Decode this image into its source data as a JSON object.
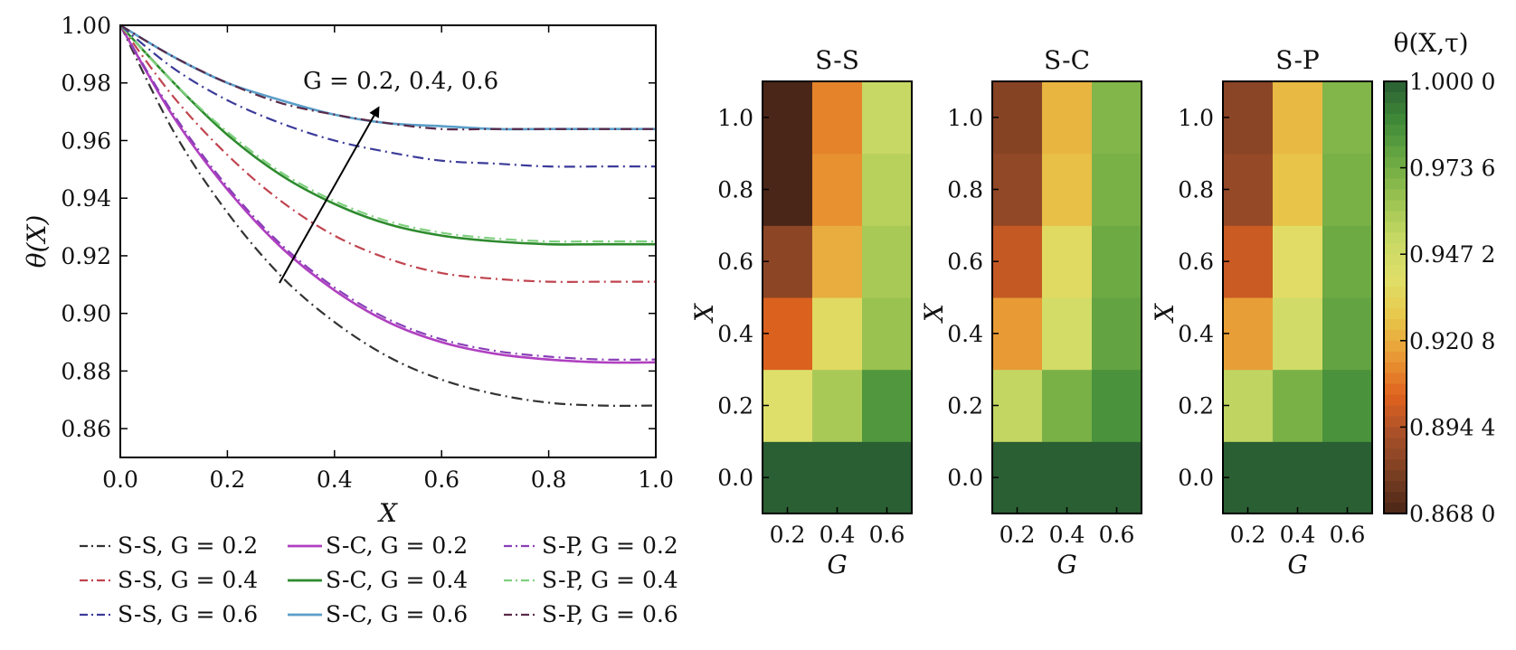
{
  "chart_data": [
    {
      "type": "line",
      "xlabel": "X",
      "ylabel": "θ(X)",
      "xlim": [
        0.0,
        1.0
      ],
      "ylim": [
        0.85,
        1.0
      ],
      "xticks": [
        "0.0",
        "0.2",
        "0.4",
        "0.6",
        "0.8",
        "1.0"
      ],
      "yticks": [
        "0.86",
        "0.88",
        "0.90",
        "0.92",
        "0.94",
        "0.96",
        "0.98",
        "1.00"
      ],
      "annotation": "G = 0.2, 0.4, 0.6",
      "legend_position": "below",
      "x": [
        0.0,
        0.1,
        0.2,
        0.3,
        0.4,
        0.5,
        0.6,
        0.7,
        0.8,
        0.9,
        1.0
      ],
      "series": [
        {
          "name": "S-S, G = 0.2",
          "color": "#333333",
          "dash": "dashdot",
          "values": [
            1.0,
            0.963,
            0.935,
            0.913,
            0.897,
            0.885,
            0.877,
            0.872,
            0.869,
            0.868,
            0.868
          ]
        },
        {
          "name": "S-C, G = 0.2",
          "color": "#b040c0",
          "dash": "solid",
          "values": [
            1.0,
            0.968,
            0.943,
            0.923,
            0.908,
            0.897,
            0.89,
            0.886,
            0.884,
            0.883,
            0.883
          ]
        },
        {
          "name": "S-P, G = 0.2",
          "color": "#8a3fb8",
          "dash": "dashdot",
          "values": [
            1.0,
            0.969,
            0.944,
            0.924,
            0.909,
            0.898,
            0.891,
            0.887,
            0.885,
            0.884,
            0.884
          ]
        },
        {
          "name": "S-S, G = 0.4",
          "color": "#c0444f",
          "dash": "dashdot",
          "values": [
            1.0,
            0.975,
            0.955,
            0.939,
            0.927,
            0.919,
            0.914,
            0.912,
            0.911,
            0.911,
            0.911
          ]
        },
        {
          "name": "S-C, G = 0.4",
          "color": "#2e8b2e",
          "dash": "solid",
          "values": [
            1.0,
            0.98,
            0.962,
            0.948,
            0.938,
            0.931,
            0.927,
            0.925,
            0.924,
            0.924,
            0.924
          ]
        },
        {
          "name": "S-P, G = 0.4",
          "color": "#7fd07f",
          "dash": "dashdot",
          "values": [
            1.0,
            0.98,
            0.963,
            0.949,
            0.939,
            0.932,
            0.928,
            0.926,
            0.925,
            0.925,
            0.925
          ]
        },
        {
          "name": "S-S, G = 0.6",
          "color": "#3b3b9a",
          "dash": "dashdot",
          "values": [
            1.0,
            0.985,
            0.974,
            0.966,
            0.96,
            0.956,
            0.953,
            0.952,
            0.951,
            0.951,
            0.951
          ]
        },
        {
          "name": "S-C, G = 0.6",
          "color": "#5b9ec9",
          "dash": "solid",
          "values": [
            1.0,
            0.989,
            0.98,
            0.974,
            0.969,
            0.966,
            0.965,
            0.964,
            0.964,
            0.964,
            0.964
          ]
        },
        {
          "name": "S-P, G = 0.6",
          "color": "#5a2a4a",
          "dash": "dashdot",
          "values": [
            1.0,
            0.989,
            0.98,
            0.973,
            0.969,
            0.966,
            0.964,
            0.964,
            0.964,
            0.964,
            0.964
          ]
        }
      ]
    },
    {
      "type": "heatmap",
      "title": "S-S",
      "xlabel": "G",
      "ylabel": "X",
      "x": [
        "0.2",
        "0.4",
        "0.6"
      ],
      "y": [
        "0.0",
        "0.2",
        "0.4",
        "0.6",
        "0.8",
        "1.0"
      ],
      "xticks": [
        "0.2",
        "0.4",
        "0.6"
      ],
      "yticks": [
        "0.0",
        "0.2",
        "0.4",
        "0.6",
        "0.8",
        "1.0"
      ],
      "z": [
        [
          1.0,
          1.0,
          1.0
        ],
        [
          0.941,
          0.96,
          0.983
        ],
        [
          0.903,
          0.937,
          0.964
        ],
        [
          0.885,
          0.921,
          0.96
        ],
        [
          0.868,
          0.914,
          0.956
        ],
        [
          0.868,
          0.911,
          0.952
        ]
      ]
    },
    {
      "type": "heatmap",
      "title": "S-C",
      "xlabel": "G",
      "ylabel": "X",
      "x": [
        "0.2",
        "0.4",
        "0.6"
      ],
      "y": [
        "0.0",
        "0.2",
        "0.4",
        "0.6",
        "0.8",
        "1.0"
      ],
      "xticks": [
        "0.2",
        "0.4",
        "0.6"
      ],
      "yticks": [
        "0.0",
        "0.2",
        "0.4",
        "0.6",
        "0.8",
        "1.0"
      ],
      "z": [
        [
          1.0,
          1.0,
          1.0
        ],
        [
          0.953,
          0.972,
          0.985
        ],
        [
          0.916,
          0.946,
          0.978
        ],
        [
          0.898,
          0.937,
          0.975
        ],
        [
          0.886,
          0.926,
          0.972
        ],
        [
          0.883,
          0.923,
          0.97
        ]
      ]
    },
    {
      "type": "heatmap",
      "title": "S-P",
      "xlabel": "G",
      "ylabel": "X",
      "x": [
        "0.2",
        "0.4",
        "0.6"
      ],
      "y": [
        "0.0",
        "0.2",
        "0.4",
        "0.6",
        "0.8",
        "1.0"
      ],
      "xticks": [
        "0.2",
        "0.4",
        "0.6"
      ],
      "yticks": [
        "0.0",
        "0.2",
        "0.4",
        "0.6",
        "0.8",
        "1.0"
      ],
      "z": [
        [
          1.0,
          1.0,
          1.0
        ],
        [
          0.954,
          0.972,
          0.985
        ],
        [
          0.917,
          0.947,
          0.978
        ],
        [
          0.899,
          0.938,
          0.975
        ],
        [
          0.887,
          0.927,
          0.972
        ],
        [
          0.884,
          0.924,
          0.97
        ]
      ]
    },
    {
      "type": "colorbar",
      "title": "θ(X,τ)",
      "min": 0.868,
      "max": 1.0,
      "labels": [
        "1.000 0",
        "0.973 6",
        "0.947 2",
        "0.920 8",
        "0.894 4",
        "0.868 0"
      ],
      "label_values": [
        1.0,
        0.9736,
        0.9472,
        0.9208,
        0.8944,
        0.868
      ],
      "colormap": [
        "#4a2618",
        "#7a3f22",
        "#a8502a",
        "#e0621e",
        "#e89a35",
        "#e8c84a",
        "#dfe06a",
        "#c7d864",
        "#9ac250",
        "#6aa843",
        "#3f8a38",
        "#2a5e33"
      ]
    }
  ]
}
